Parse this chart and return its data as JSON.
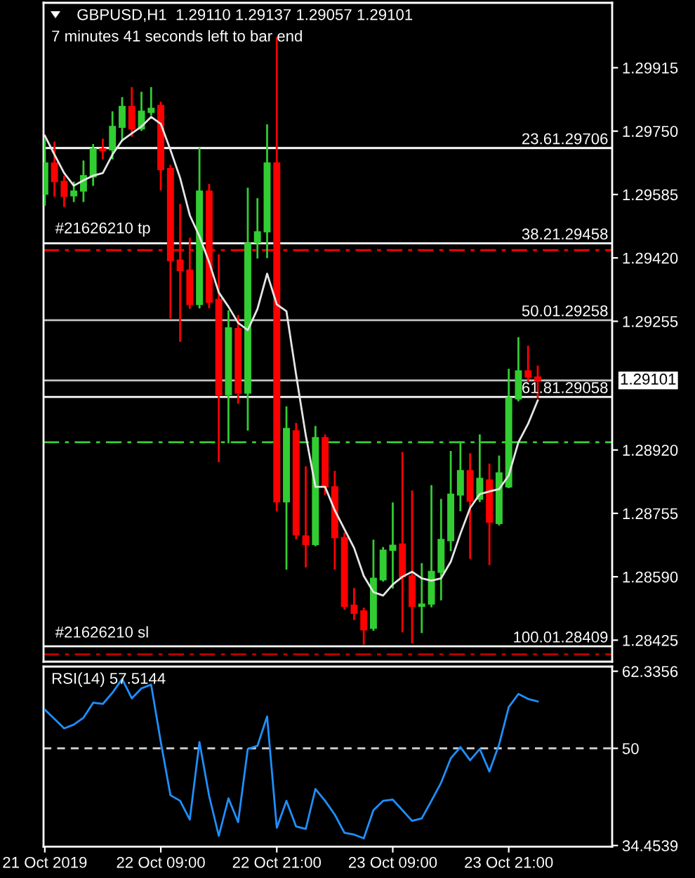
{
  "chart_data": [
    {
      "type": "candlestick",
      "title": "GBPUSD,H1  1.29110 1.29137 1.29057 1.29101",
      "subtitle": "7 minutes 41 seconds left to bar end",
      "x": [
        "2019-10-21T21:00",
        "2019-10-21T22:00",
        "2019-10-21T23:00",
        "2019-10-22T00:00",
        "2019-10-22T01:00",
        "2019-10-22T02:00",
        "2019-10-22T03:00",
        "2019-10-22T04:00",
        "2019-10-22T05:00",
        "2019-10-22T06:00",
        "2019-10-22T07:00",
        "2019-10-22T08:00",
        "2019-10-22T09:00",
        "2019-10-22T10:00",
        "2019-10-22T11:00",
        "2019-10-22T12:00",
        "2019-10-22T13:00",
        "2019-10-22T14:00",
        "2019-10-22T15:00",
        "2019-10-22T16:00",
        "2019-10-22T17:00",
        "2019-10-22T18:00",
        "2019-10-22T19:00",
        "2019-10-22T20:00",
        "2019-10-22T21:00",
        "2019-10-22T22:00",
        "2019-10-22T23:00",
        "2019-10-23T00:00",
        "2019-10-23T01:00",
        "2019-10-23T02:00",
        "2019-10-23T03:00",
        "2019-10-23T04:00",
        "2019-10-23T05:00",
        "2019-10-23T06:00",
        "2019-10-23T07:00",
        "2019-10-23T08:00",
        "2019-10-23T09:00",
        "2019-10-23T10:00",
        "2019-10-23T11:00",
        "2019-10-23T12:00",
        "2019-10-23T13:00",
        "2019-10-23T14:00",
        "2019-10-23T15:00",
        "2019-10-23T16:00",
        "2019-10-23T17:00",
        "2019-10-23T18:00",
        "2019-10-23T19:00",
        "2019-10-23T20:00",
        "2019-10-23T21:00",
        "2019-10-23T22:00",
        "2019-10-23T23:00",
        "2019-10-24T00:00"
      ],
      "ohlc": [
        [
          1.29586,
          1.29726,
          1.29558,
          1.29667
        ],
        [
          1.29667,
          1.2972,
          1.29582,
          1.29619
        ],
        [
          1.29619,
          1.29631,
          1.29555,
          1.2958
        ],
        [
          1.29582,
          1.29616,
          1.29568,
          1.29594
        ],
        [
          1.29594,
          1.29671,
          1.29568,
          1.29634
        ],
        [
          1.29631,
          1.29714,
          1.2961,
          1.29704
        ],
        [
          1.29704,
          1.29728,
          1.29679,
          1.29699
        ],
        [
          1.29701,
          1.29799,
          1.29679,
          1.29762
        ],
        [
          1.2976,
          1.29836,
          1.29726,
          1.29814
        ],
        [
          1.29814,
          1.29862,
          1.29738,
          1.29756
        ],
        [
          1.29756,
          1.2985,
          1.29753,
          1.29802
        ],
        [
          1.29799,
          1.29862,
          1.29793,
          1.29809
        ],
        [
          1.29817,
          1.29824,
          1.29598,
          1.2965
        ],
        [
          1.29653,
          1.2966,
          1.29265,
          1.29413
        ],
        [
          1.29414,
          1.29558,
          1.29204,
          1.29387
        ],
        [
          1.29388,
          1.2947,
          1.2929,
          1.29299
        ],
        [
          1.29299,
          1.29704,
          1.29291,
          1.29594
        ],
        [
          1.29594,
          1.2961,
          1.29291,
          1.29305
        ],
        [
          1.29312,
          1.29427,
          1.28891,
          1.29064
        ],
        [
          1.29064,
          1.29281,
          1.2894,
          1.29238
        ],
        [
          1.29236,
          1.29269,
          1.29043,
          1.29068
        ],
        [
          1.29068,
          1.296,
          1.28973,
          1.29458
        ],
        [
          1.2946,
          1.29573,
          1.29421,
          1.29488
        ],
        [
          1.29488,
          1.29765,
          1.29422,
          1.29667
        ],
        [
          1.29667,
          1.29992,
          1.28763,
          1.28785
        ],
        [
          1.28785,
          1.29031,
          1.28611,
          1.28976
        ],
        [
          1.2897,
          1.28988,
          1.2869,
          1.28699
        ],
        [
          1.28696,
          1.28875,
          1.28617,
          1.28674
        ],
        [
          1.28674,
          1.2898,
          1.28672,
          1.28952
        ],
        [
          1.28952,
          1.28958,
          1.28805,
          1.28824
        ],
        [
          1.28824,
          1.28863,
          1.28611,
          1.28692
        ],
        [
          1.28692,
          1.28702,
          1.28507,
          1.28513
        ],
        [
          1.28516,
          1.28558,
          1.2848,
          1.28495
        ],
        [
          1.28501,
          1.28507,
          1.28416,
          1.28452
        ],
        [
          1.28456,
          1.28684,
          1.28452,
          1.28586
        ],
        [
          1.28582,
          1.28665,
          1.2858,
          1.28659
        ],
        [
          1.28659,
          1.28781,
          1.28562,
          1.28672
        ],
        [
          1.28675,
          1.28912,
          1.28448,
          1.2859
        ],
        [
          1.28592,
          1.28812,
          1.28419,
          1.28513
        ],
        [
          1.28513,
          1.28623,
          1.28446,
          1.28519
        ],
        [
          1.28519,
          1.28826,
          1.28513,
          1.28604
        ],
        [
          1.28602,
          1.2879,
          1.28531,
          1.28687
        ],
        [
          1.28684,
          1.28915,
          1.28659,
          1.28805
        ],
        [
          1.28803,
          1.2894,
          1.28763,
          1.28866
        ],
        [
          1.28866,
          1.28909,
          1.28639,
          1.28787
        ],
        [
          1.28792,
          1.28958,
          1.28787,
          1.28846
        ],
        [
          1.28842,
          1.28882,
          1.28623,
          1.28732
        ],
        [
          1.28729,
          1.28903,
          1.28726,
          1.2886
        ],
        [
          1.28824,
          1.29129,
          1.28823,
          1.29056
        ],
        [
          1.29053,
          1.29211,
          1.29049,
          1.29126
        ],
        [
          1.29126,
          1.29189,
          1.291,
          1.2911
        ],
        [
          1.2911,
          1.29137,
          1.29057,
          1.29101
        ]
      ],
      "colors": [
        "#32cd32",
        "#ff0000",
        "#ff0000",
        "#32cd32",
        "#32cd32",
        "#32cd32",
        "#ff0000",
        "#32cd32",
        "#32cd32",
        "#ff0000",
        "#32cd32",
        "#32cd32",
        "#ff0000",
        "#ff0000",
        "#ff0000",
        "#ff0000",
        "#32cd32",
        "#ff0000",
        "#ff0000",
        "#32cd32",
        "#ff0000",
        "#32cd32",
        "#32cd32",
        "#32cd32",
        "#ff0000",
        "#32cd32",
        "#ff0000",
        "#ff0000",
        "#32cd32",
        "#ff0000",
        "#ff0000",
        "#ff0000",
        "#ff0000",
        "#ff0000",
        "#32cd32",
        "#32cd32",
        "#32cd32",
        "#ff0000",
        "#ff0000",
        "#32cd32",
        "#32cd32",
        "#32cd32",
        "#32cd32",
        "#32cd32",
        "#ff0000",
        "#32cd32",
        "#ff0000",
        "#32cd32",
        "#32cd32",
        "#32cd32",
        "#ff0000",
        "#ff0000"
      ],
      "series": [
        {
          "type": "line",
          "color": "#e6e6e6",
          "values": [
            1.29738,
            1.29689,
            1.29641,
            1.29608,
            1.29622,
            1.29634,
            1.29641,
            1.29689,
            1.29726,
            1.29744,
            1.29762,
            1.29787,
            1.29769,
            1.29701,
            1.29628,
            1.29531,
            1.29476,
            1.29409,
            1.2933,
            1.29293,
            1.29251,
            1.29232,
            1.29287,
            1.29379,
            1.29299,
            1.29281,
            1.29116,
            1.28958,
            1.28824,
            1.28824,
            1.28763,
            1.28714,
            1.28665,
            1.28592,
            1.2855,
            1.28541,
            1.2857,
            1.2859,
            1.28603,
            1.28586,
            1.2858,
            1.28586,
            1.28629,
            1.28702,
            1.28769,
            1.28805,
            1.28812,
            1.28818,
            1.28854,
            1.2894,
            1.28988,
            1.29049
          ]
        }
      ],
      "xlim": [
        "2019-10-21T20:52",
        "2019-10-24T07:42"
      ],
      "ylim": [
        1.28369,
        1.30084
      ],
      "yticks": [
        1.29915,
        {
          "value": 1.2975,
          "label": "1.29750"
        },
        1.29585,
        {
          "value": 1.2942,
          "label": "1.29420"
        },
        1.29255,
        {
          "value": 1.2892,
          "label": "1.28920"
        },
        1.28755,
        {
          "value": 1.2859,
          "label": "1.28590"
        },
        1.28425
      ],
      "tick_labels": "y",
      "ref_lines": [
        {
          "axis": "y",
          "value": 1.29101,
          "label": "1.29101",
          "color": "#c0c0c0"
        },
        {
          "axis": "y",
          "value": 1.29706,
          "label": "23.61.29706",
          "color": "#ffffff"
        },
        {
          "axis": "y",
          "value": 1.29458,
          "label": "38.21.29458",
          "color": "#ffffff"
        },
        {
          "axis": "y",
          "value": 1.29258,
          "label": "50.01.29258",
          "color": "#c0c0c0"
        },
        {
          "axis": "y",
          "value": 1.29058,
          "label": "61.81.29058",
          "color": "#ffffff"
        },
        {
          "axis": "y",
          "value": 1.28409,
          "label": "100.01.28409",
          "color": "#ffffff"
        },
        {
          "axis": "y",
          "value": 1.2944,
          "label": "#21626210 tp",
          "color": "#ff0000",
          "line_style": "dashdot"
        },
        {
          "axis": "y",
          "value": 1.2894,
          "color": "#32cd32",
          "line_style": "dashdot"
        },
        {
          "axis": "y",
          "value": 1.28388,
          "label": "#21626210 sl",
          "color": "#c00000",
          "line_style": "dashdot"
        }
      ]
    },
    {
      "type": "line",
      "title": "RSI(14) 57.5144",
      "x": [
        "2019-10-21T21:00",
        "2019-10-21T22:00",
        "2019-10-21T23:00",
        "2019-10-22T00:00",
        "2019-10-22T01:00",
        "2019-10-22T02:00",
        "2019-10-22T03:00",
        "2019-10-22T04:00",
        "2019-10-22T05:00",
        "2019-10-22T06:00",
        "2019-10-22T07:00",
        "2019-10-22T08:00",
        "2019-10-22T09:00",
        "2019-10-22T10:00",
        "2019-10-22T11:00",
        "2019-10-22T12:00",
        "2019-10-22T13:00",
        "2019-10-22T14:00",
        "2019-10-22T15:00",
        "2019-10-22T16:00",
        "2019-10-22T17:00",
        "2019-10-22T18:00",
        "2019-10-22T19:00",
        "2019-10-22T20:00",
        "2019-10-22T21:00",
        "2019-10-22T22:00",
        "2019-10-22T23:00",
        "2019-10-23T00:00",
        "2019-10-23T01:00",
        "2019-10-23T02:00",
        "2019-10-23T03:00",
        "2019-10-23T04:00",
        "2019-10-23T05:00",
        "2019-10-23T06:00",
        "2019-10-23T07:00",
        "2019-10-23T08:00",
        "2019-10-23T09:00",
        "2019-10-23T10:00",
        "2019-10-23T11:00",
        "2019-10-23T12:00",
        "2019-10-23T13:00",
        "2019-10-23T14:00",
        "2019-10-23T15:00",
        "2019-10-23T16:00",
        "2019-10-23T17:00",
        "2019-10-23T18:00",
        "2019-10-23T19:00",
        "2019-10-23T20:00",
        "2019-10-23T21:00",
        "2019-10-23T22:00",
        "2019-10-23T23:00",
        "2019-10-24T00:00"
      ],
      "series": [
        {
          "color": "#1e90ff",
          "values": [
            56.2,
            54.7,
            53.2,
            53.8,
            54.9,
            57.3,
            57.1,
            58.9,
            61.1,
            58.0,
            59.6,
            60.2,
            51.0,
            42.5,
            41.6,
            38.6,
            51.0,
            42.4,
            36.0,
            42.0,
            38.2,
            49.9,
            50.4,
            55.1,
            37.3,
            41.6,
            37.5,
            37.1,
            43.5,
            41.6,
            39.4,
            36.5,
            36.2,
            35.6,
            40.1,
            41.6,
            41.8,
            40.1,
            38.4,
            38.8,
            41.6,
            44.5,
            48.4,
            50.2,
            48.1,
            49.9,
            46.3,
            50.6,
            56.6,
            58.7,
            57.9,
            57.5
          ]
        }
      ],
      "xlim": [
        "2019-10-21T20:52",
        "2019-10-24T07:42"
      ],
      "xticks": [
        {
          "value": "2019-10-21T21:00",
          "label": "21 Oct 2019"
        },
        {
          "value": "2019-10-22T09:00",
          "label": "22 Oct 09:00"
        },
        {
          "value": "2019-10-22T21:00",
          "label": "22 Oct 21:00"
        },
        {
          "value": "2019-10-23T09:00",
          "label": "23 Oct 09:00"
        },
        {
          "value": "2019-10-23T21:00",
          "label": "23 Oct 21:00"
        }
      ],
      "ylim": [
        34.27,
        63.08
      ],
      "yticks": [
        34.4539,
        50,
        62.3356
      ],
      "ref_lines": [
        {
          "axis": "y",
          "value": 50,
          "color": "#d3d3d3",
          "line_style": "dashed"
        }
      ]
    }
  ]
}
